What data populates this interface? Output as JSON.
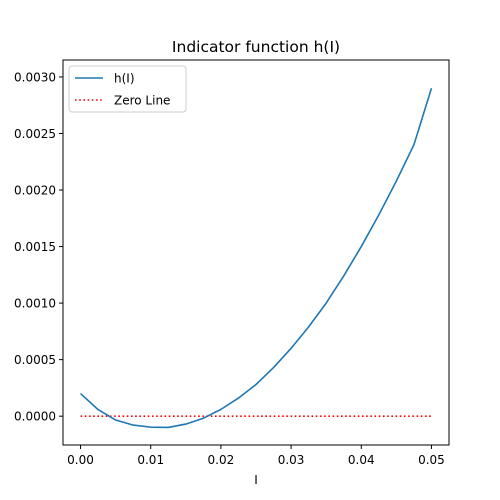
{
  "chart_data": {
    "type": "line",
    "title": "Indicator function h(I)",
    "xlabel": "I",
    "ylabel": "",
    "xlim": [
      -0.0025,
      0.0525
    ],
    "ylim": [
      -0.000255,
      0.00315
    ],
    "grid": false,
    "legend_placement": "top-left",
    "x_ticks": [
      0.0,
      0.01,
      0.02,
      0.03,
      0.04,
      0.05
    ],
    "x_tick_labels": [
      "0.00",
      "0.01",
      "0.02",
      "0.03",
      "0.04",
      "0.05"
    ],
    "y_ticks": [
      0.0,
      0.0005,
      0.001,
      0.0015,
      0.002,
      0.0025,
      0.003
    ],
    "y_tick_labels": [
      "0.0000",
      "0.0005",
      "0.0010",
      "0.0015",
      "0.0020",
      "0.0025",
      "0.0030"
    ],
    "series": [
      {
        "name": "h(I)",
        "color": "#1f77b4",
        "style": "solid",
        "x": [
          0.0,
          0.0025,
          0.005,
          0.0075,
          0.01,
          0.0125,
          0.015,
          0.0175,
          0.02,
          0.0225,
          0.025,
          0.0275,
          0.03,
          0.0325,
          0.035,
          0.0375,
          0.04,
          0.0425,
          0.045,
          0.0475,
          0.05
        ],
        "y": [
          0.0002,
          5.8e-05,
          -3.4e-05,
          -7.9e-05,
          -9.7e-05,
          -0.0001,
          -7e-05,
          -1.8e-05,
          6e-05,
          0.00016,
          0.00028,
          0.00043,
          0.0006,
          0.00079,
          0.001,
          0.00124,
          0.0015,
          0.00178,
          0.00208,
          0.0024,
          0.0029
        ]
      },
      {
        "name": "Zero Line",
        "color": "#ff0000",
        "style": "dotted",
        "x": [
          0.0,
          0.05
        ],
        "y": [
          0.0,
          0.0
        ]
      }
    ]
  }
}
